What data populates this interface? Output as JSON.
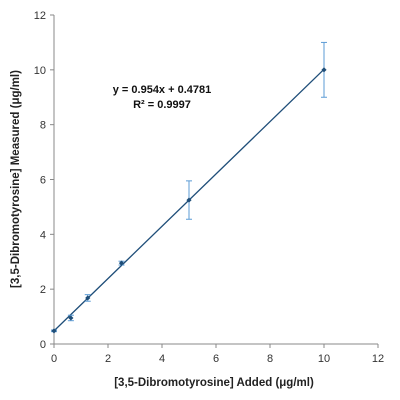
{
  "chart_data": {
    "type": "scatter",
    "xlabel": "[3,5-Dibromotyrosine] Added (μg/ml)",
    "ylabel": "[3,5-Dibromotyrosine] Measured (μg/ml)",
    "xlim": [
      0,
      12
    ],
    "ylim": [
      0,
      12
    ],
    "xticks": [
      0,
      2,
      4,
      6,
      8,
      10,
      12
    ],
    "yticks": [
      0,
      2,
      4,
      6,
      8,
      10,
      12
    ],
    "grid": false,
    "legend": "none",
    "series": [
      {
        "x": [
          0,
          0.625,
          1.25,
          2.5,
          5,
          10
        ],
        "y": [
          0.48,
          0.95,
          1.68,
          2.95,
          5.25,
          10.0
        ],
        "error": [
          0.03,
          0.1,
          0.12,
          0.07,
          0.7,
          1.0
        ],
        "color": "#1f4e79"
      }
    ],
    "trendline": {
      "slope": 0.954,
      "intercept": 0.4781,
      "x_range": [
        0,
        10
      ],
      "color": "#1f4e79"
    },
    "annotations": {
      "equation": "y = 0.954x + 0.4781",
      "r_squared": "R² = 0.9997"
    },
    "colors": {
      "axis": "#888888",
      "error_bar": "#5b9bd5"
    }
  }
}
